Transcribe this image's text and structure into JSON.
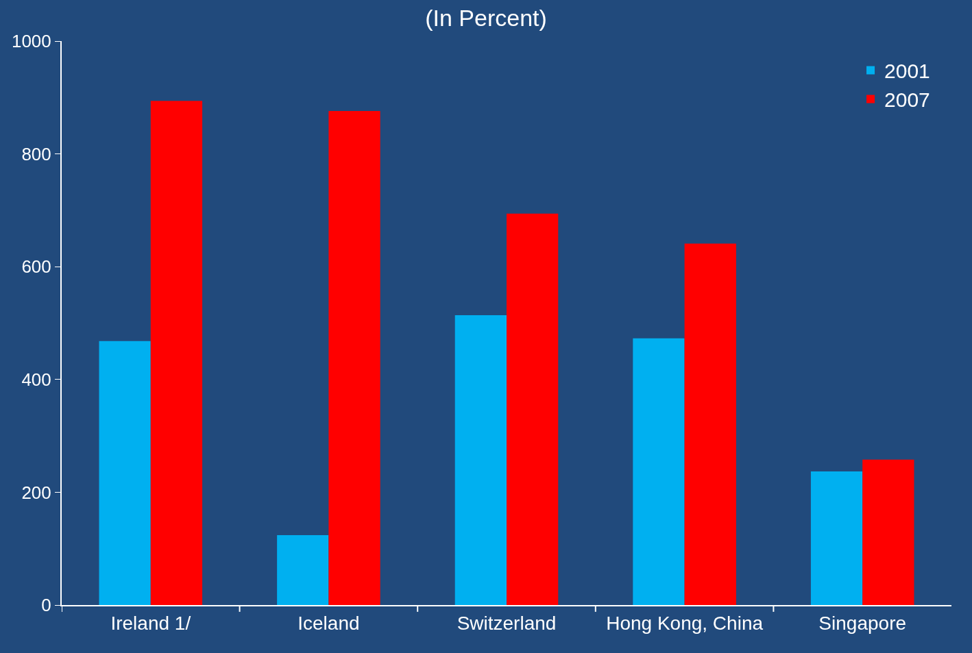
{
  "chart_data": {
    "type": "bar",
    "title": "(In Percent)",
    "categories": [
      "Ireland 1/",
      "Iceland",
      "Switzerland",
      "Hong Kong, China",
      "Singapore"
    ],
    "series": [
      {
        "name": "2001",
        "color": "#00b0f0",
        "values": [
          468,
          124,
          514,
          473,
          237
        ]
      },
      {
        "name": "2007",
        "color": "#ff0000",
        "values": [
          894,
          876,
          694,
          641,
          258
        ]
      }
    ],
    "ylim": [
      0,
      1000
    ],
    "yticks": [
      0,
      200,
      400,
      600,
      800,
      1000
    ],
    "legend": "top right"
  }
}
